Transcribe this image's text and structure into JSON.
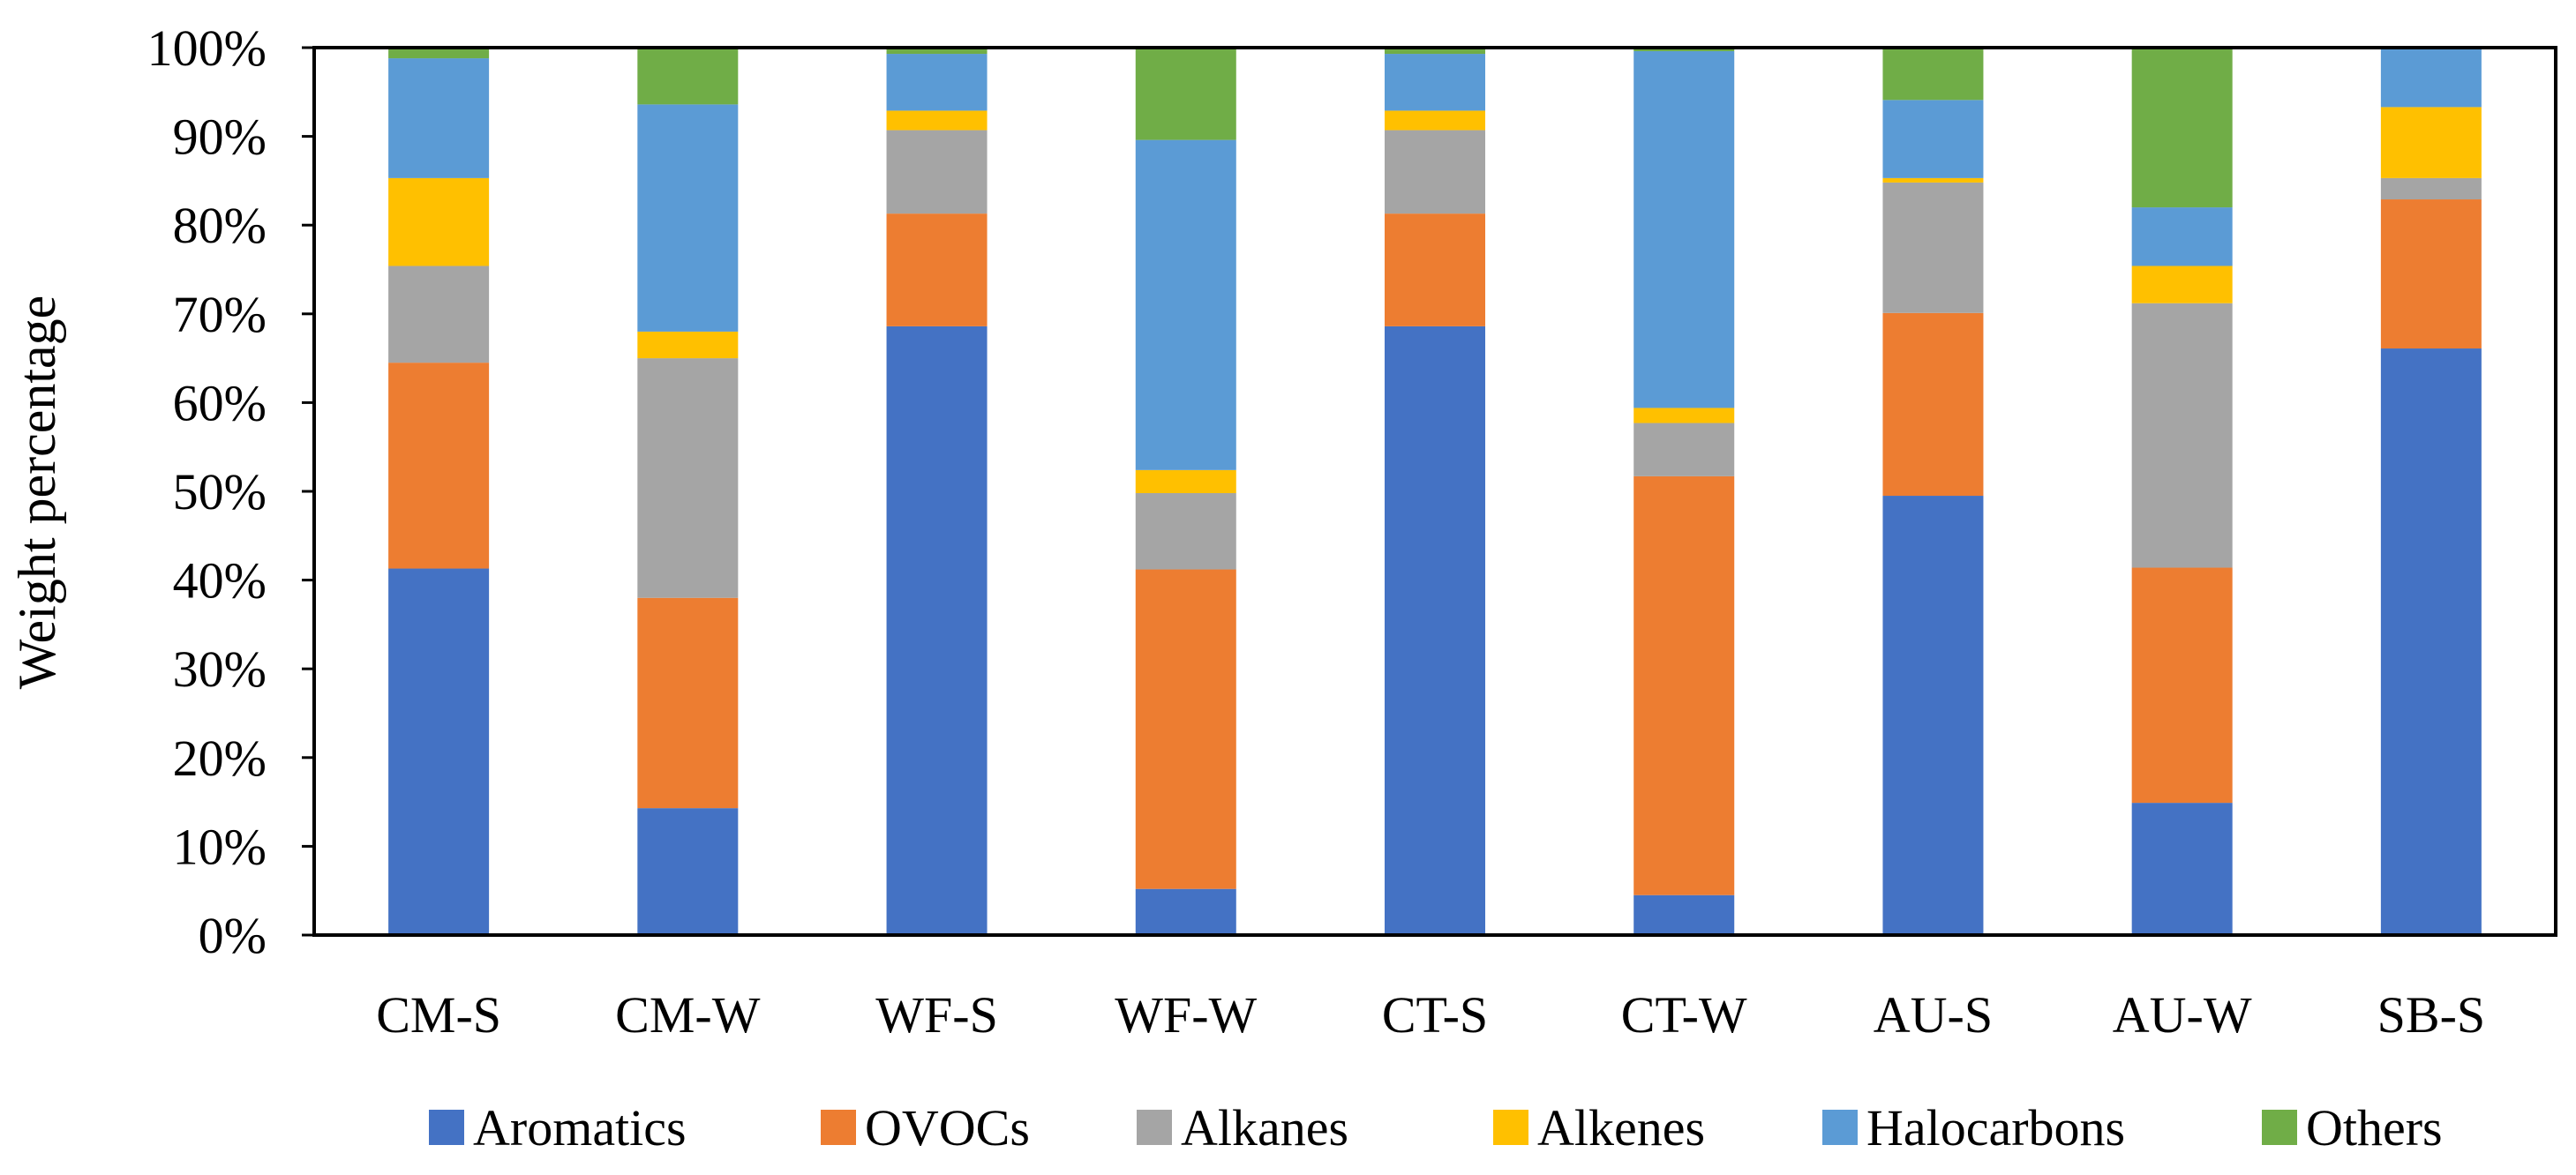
{
  "chart_data": {
    "type": "bar",
    "stacked": true,
    "ylabel": "Weight percentage",
    "ylim": [
      0,
      100
    ],
    "y_ticks": [
      "0%",
      "10%",
      "20%",
      "30%",
      "40%",
      "50%",
      "60%",
      "70%",
      "80%",
      "90%",
      "100%"
    ],
    "y_tick_values": [
      0,
      10,
      20,
      30,
      40,
      50,
      60,
      70,
      80,
      90,
      100
    ],
    "grid": false,
    "legend_position": "bottom",
    "categories": [
      "CM-S",
      "CM-W",
      "WF-S",
      "WF-W",
      "CT-S",
      "CT-W",
      "AU-S",
      "AU-W",
      "SB-S"
    ],
    "series": [
      {
        "name": "Aromatics",
        "color": "#4472C4",
        "values": [
          41.3,
          14.3,
          68.6,
          5.2,
          68.6,
          4.5,
          49.5,
          14.9,
          66.1
        ]
      },
      {
        "name": "OVOCs",
        "color": "#ED7D31",
        "values": [
          23.2,
          23.7,
          12.7,
          36.0,
          12.7,
          47.2,
          20.6,
          26.5,
          16.8
        ]
      },
      {
        "name": "Alkanes",
        "color": "#A5A5A5",
        "values": [
          10.9,
          27.0,
          9.4,
          8.6,
          9.4,
          6.0,
          14.7,
          29.8,
          2.4
        ]
      },
      {
        "name": "Alkenes",
        "color": "#FFC000",
        "values": [
          9.9,
          3.0,
          2.2,
          2.6,
          2.2,
          1.7,
          0.5,
          4.2,
          8.0
        ]
      },
      {
        "name": "Halocarbons",
        "color": "#5B9BD5",
        "values": [
          13.5,
          25.6,
          6.4,
          37.2,
          6.4,
          40.2,
          8.8,
          6.6,
          6.7
        ]
      },
      {
        "name": "Others",
        "color": "#70AD47",
        "values": [
          1.2,
          6.4,
          0.7,
          10.4,
          0.7,
          0.4,
          5.9,
          18.0,
          0.0
        ]
      }
    ]
  }
}
